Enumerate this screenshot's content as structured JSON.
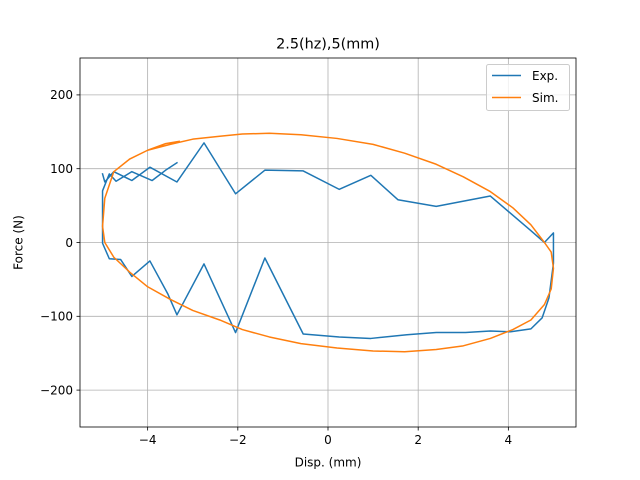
{
  "chart_data": {
    "type": "line",
    "title": "2.5(hz),5(mm)",
    "xlabel": "Disp. (mm)",
    "ylabel": "Force (N)",
    "xlim": [
      -5.5,
      5.5
    ],
    "ylim": [
      -250,
      250
    ],
    "xticks": [
      -4,
      -2,
      0,
      2,
      4
    ],
    "xtick_labels": [
      "−4",
      "−2",
      "0",
      "2",
      "4"
    ],
    "yticks": [
      -200,
      -100,
      0,
      100,
      200
    ],
    "ytick_labels": [
      "−200",
      "−100",
      "0",
      "100",
      "200"
    ],
    "grid": true,
    "legend_position": "top-right",
    "series": [
      {
        "name": "Exp.",
        "color": "#1f77b4",
        "x": [
          -3.35,
          -3.6,
          -3.9,
          -4.35,
          -4.7,
          -4.85,
          -5.0,
          -5.0,
          -4.85,
          -4.6,
          -4.35,
          -3.95,
          -3.55,
          -3.35,
          -2.75,
          -2.05,
          -1.4,
          -0.55,
          0.25,
          0.95,
          1.75,
          2.4,
          3.05,
          3.6,
          4.05,
          4.5,
          4.75,
          4.9,
          5.0,
          5.0,
          4.8,
          4.5,
          3.6,
          2.4,
          1.55,
          0.95,
          0.25,
          -0.55,
          -1.4,
          -2.05,
          -2.75,
          -3.35,
          -3.95,
          -4.35,
          -4.75,
          -4.95,
          -5.0
        ],
        "y": [
          108,
          98,
          84,
          96,
          83,
          93,
          70,
          -1,
          -22,
          -23,
          -46,
          -25,
          -70,
          -98,
          -29,
          -122,
          -21,
          -124,
          -128,
          -130,
          -125,
          -122,
          -122,
          -120,
          -121,
          -117,
          -102,
          -75,
          -28,
          13,
          0,
          16,
          63,
          49,
          58,
          91,
          72,
          97,
          98,
          66,
          135,
          82,
          102,
          84,
          96,
          82,
          93
        ]
      },
      {
        "name": "Sim.",
        "color": "#ff7f0e",
        "x": [
          -4.4,
          -4.0,
          -3.5,
          -3.0,
          -2.4,
          -1.9,
          -1.3,
          -0.6,
          0.2,
          1.0,
          1.7,
          2.4,
          3.0,
          3.6,
          4.1,
          4.5,
          4.8,
          4.95,
          5.0,
          4.95,
          4.8,
          4.5,
          4.1,
          3.6,
          3.0,
          2.4,
          1.7,
          1.0,
          0.2,
          -0.6,
          -1.3,
          -1.9,
          -2.4,
          -3.0,
          -3.5,
          -4.0,
          -4.4,
          -4.75,
          -4.95,
          -5.0,
          -4.95,
          -4.75,
          -4.4,
          -4.0,
          -3.6,
          -3.3
        ],
        "y": [
          113,
          125,
          133,
          140,
          144,
          147,
          148,
          146,
          141,
          133,
          121,
          106,
          89,
          69,
          47,
          24,
          0,
          -13,
          -35,
          -63,
          -84,
          -105,
          -118,
          -130,
          -140,
          -145,
          -148,
          -147,
          -143,
          -137,
          -128,
          -118,
          -105,
          -92,
          -77,
          -60,
          -40,
          -20,
          0,
          22,
          60,
          96,
          113,
          125,
          134,
          137
        ]
      }
    ]
  }
}
